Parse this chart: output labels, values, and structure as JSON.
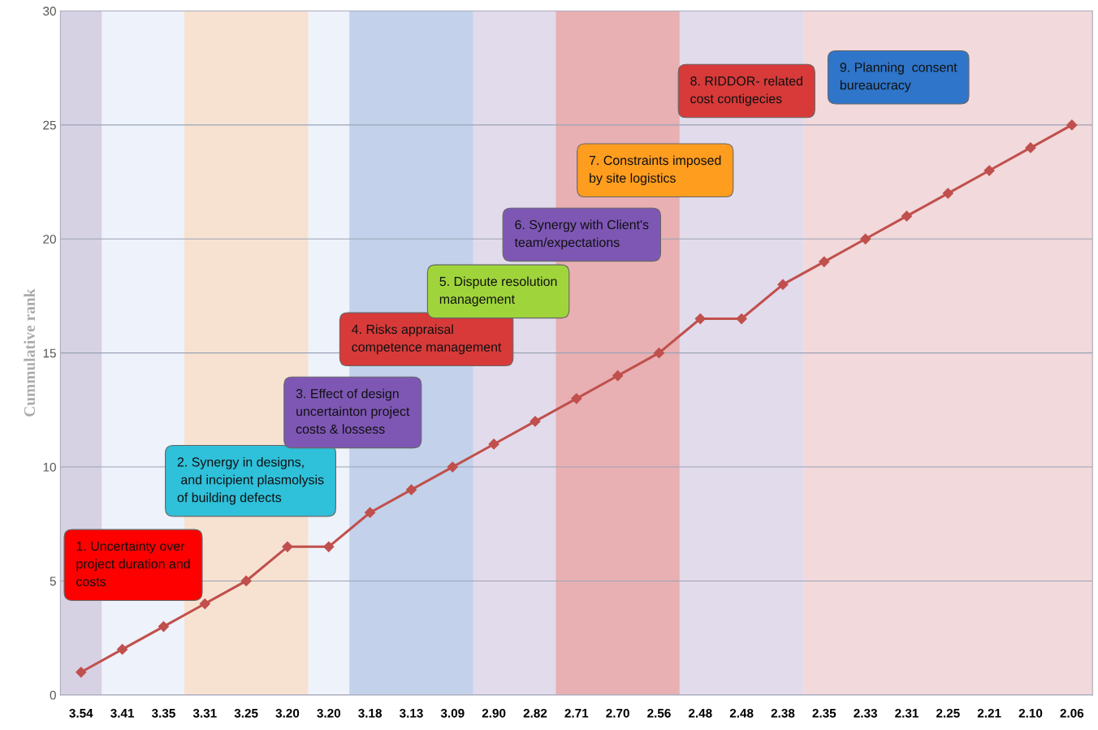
{
  "chart_data": {
    "type": "line",
    "ylabel": "Cummulative rank",
    "categories": [
      "3.54",
      "3.41",
      "3.35",
      "3.31",
      "3.25",
      "3.20",
      "3.20",
      "3.18",
      "3.13",
      "3.09",
      "2.90",
      "2.82",
      "2.71",
      "2.70",
      "2.56",
      "2.48",
      "2.48",
      "2.38",
      "2.35",
      "2.33",
      "2.31",
      "2.25",
      "2.21",
      "2.10",
      "2.06"
    ],
    "series": [
      {
        "color": "#c0504d",
        "values": [
          1,
          2,
          3,
          4,
          5,
          6.5,
          6.5,
          8,
          9,
          10,
          11,
          12,
          13,
          14,
          15,
          16.5,
          16.5,
          18,
          19,
          20,
          21,
          22,
          23,
          24,
          25
        ]
      }
    ],
    "ylim": [
      0,
      30
    ],
    "yticks": [
      0,
      5,
      10,
      15,
      20,
      25,
      30
    ],
    "grid": "y",
    "marker": "diamond",
    "line_style": "solid",
    "legend": false,
    "bands": [
      {
        "axis": "x",
        "from": "3.54",
        "to": "3.54",
        "color": "#cfc6dc"
      },
      {
        "axis": "x",
        "from": "3.31",
        "to": "3.20",
        "color": "#f9dcc4"
      },
      {
        "axis": "x",
        "from": "3.18",
        "to": "3.09",
        "color": "#b4c7e4"
      },
      {
        "axis": "x",
        "from": "2.90",
        "to": "2.82",
        "color": "#ddd3e6"
      },
      {
        "axis": "x",
        "from": "2.71",
        "to": "2.56",
        "color": "#e59a9a"
      },
      {
        "axis": "x",
        "from": "2.48",
        "to": "2.38",
        "color": "#ddd3e6"
      },
      {
        "axis": "x",
        "from": "2.35",
        "to": "2.06",
        "color": "#f3d0d0"
      }
    ],
    "annotations": [
      "1. Uncertainty over\nproject duration and\ncosts",
      "2. Synergy in designs,\n and incipient plasmolysis\nof building defects",
      "3. Effect of design\nuncertainton project\ncosts & lossess",
      "4. Risks appraisal\ncompetence management",
      "5. Dispute resolution\nmanagement",
      "6. Synergy with Client's\nteam/expectations",
      "7. Constraints imposed\nby site logistics",
      "8. RIDDOR- related\ncost contigecies",
      "9. Planning  consent\nbureaucracy"
    ]
  }
}
